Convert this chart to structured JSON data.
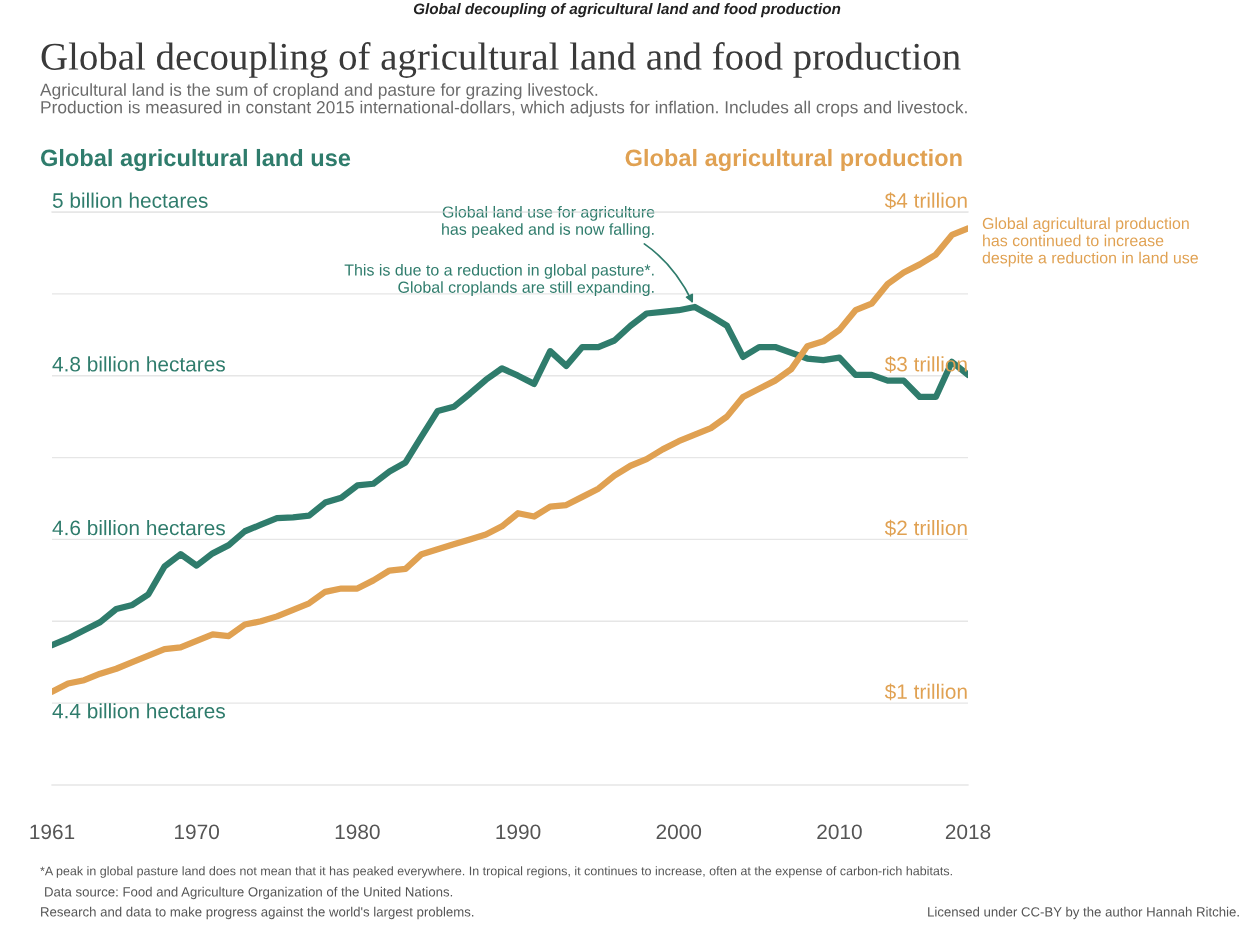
{
  "chart_data": {
    "type": "line",
    "title": "Global decoupling of agricultural land and food production",
    "subtitle": "Agricultural land is the sum of cropland and pasture for grazing livestock.\nProduction is measured in constant 2015 international-dollars, which adjusts for inflation. Includes all crops and livestock.",
    "ylabel": "Global agricultural land use",
    "y2label": "Global agricultural production",
    "x": [
      1961,
      1962,
      1963,
      1964,
      1965,
      1966,
      1967,
      1968,
      1969,
      1970,
      1971,
      1972,
      1973,
      1974,
      1975,
      1976,
      1977,
      1978,
      1979,
      1980,
      1981,
      1982,
      1983,
      1984,
      1985,
      1986,
      1987,
      1988,
      1989,
      1990,
      1991,
      1992,
      1993,
      1994,
      1995,
      1996,
      1997,
      1998,
      1999,
      2000,
      2001,
      2002,
      2003,
      2004,
      2005,
      2006,
      2007,
      2008,
      2009,
      2010,
      2011,
      2012,
      2013,
      2014,
      2015,
      2016,
      2017,
      2018
    ],
    "series": [
      {
        "color": "#2f7c6c",
        "values": [
          4.471,
          4.479,
          4.489,
          4.499,
          4.515,
          4.52,
          4.533,
          4.567,
          4.582,
          4.568,
          4.583,
          4.593,
          4.61,
          4.618,
          4.626,
          4.627,
          4.629,
          4.645,
          4.651,
          4.666,
          4.668,
          4.683,
          4.694,
          4.726,
          4.757,
          4.762,
          4.778,
          4.795,
          4.809,
          4.8,
          4.79,
          4.83,
          4.812,
          4.835,
          4.835,
          4.843,
          4.861,
          4.876,
          4.878,
          4.88,
          4.884,
          4.873,
          4.861,
          4.823,
          4.835,
          4.835,
          4.828,
          4.821,
          4.819,
          4.822,
          4.801,
          4.801,
          4.794,
          4.794,
          4.774,
          4.774,
          4.817,
          4.801
        ]
      },
      {
        "color": "#e0a152",
        "axis": "y2",
        "values": [
          1.07,
          1.12,
          1.14,
          1.18,
          1.21,
          1.25,
          1.29,
          1.33,
          1.34,
          1.38,
          1.42,
          1.41,
          1.48,
          1.5,
          1.53,
          1.57,
          1.61,
          1.68,
          1.7,
          1.7,
          1.75,
          1.81,
          1.82,
          1.91,
          1.94,
          1.97,
          2.0,
          2.03,
          2.08,
          2.16,
          2.14,
          2.2,
          2.21,
          2.26,
          2.31,
          2.39,
          2.45,
          2.49,
          2.55,
          2.6,
          2.64,
          2.68,
          2.75,
          2.87,
          2.92,
          2.97,
          3.04,
          3.18,
          3.21,
          3.28,
          3.4,
          3.44,
          3.56,
          3.63,
          3.68,
          3.74,
          3.86,
          3.9
        ]
      }
    ],
    "xlim": [
      1961,
      2018
    ],
    "xticks": [
      1961,
      1970,
      1980,
      1990,
      2000,
      2010,
      2018
    ],
    "ylim": [
      4.3,
      5.0
    ],
    "yticks": [
      {
        "value": 4.4,
        "label": "4.4 billion hectares"
      },
      {
        "value": 4.5,
        "label": null
      },
      {
        "value": 4.6,
        "label": "4.6 billion hectares"
      },
      {
        "value": 4.7,
        "label": null
      },
      {
        "value": 4.8,
        "label": "4.8 billion hectares"
      },
      {
        "value": 4.9,
        "label": null
      },
      {
        "value": 5.0,
        "label": "5 billion hectares"
      }
    ],
    "y2lim": [
      0.5,
      4.0
    ],
    "y2ticks": [
      {
        "value": 1,
        "label": "$1 trillion"
      },
      {
        "value": 2,
        "label": "$2 trillion"
      },
      {
        "value": 3,
        "label": "$3 trillion"
      },
      {
        "value": 4,
        "label": "$4 trillion"
      }
    ],
    "grid": "y",
    "annotations": [
      "Global decoupling of agricultural land and food production",
      {
        "text": "Global land use for agriculture\nhas peaked and is now falling.",
        "x": 2001,
        "y": 4.884
      },
      "This is due to a reduction in global pasture*.\nGlobal croplands are still expanding.",
      "Global agricultural production\nhas continued to increase\ndespite a reduction in land use",
      "*A peak in global pasture land does not mean that it has peaked everywhere. In tropical regions, it continues to increase, often at the expense of carbon-rich habitats.",
      "Data source: Food and Agriculture Organization of the United Nations.",
      "Research and data to make progress against the world's largest problems.",
      "Licensed under CC-BY by the author Hannah Ritchie."
    ]
  }
}
